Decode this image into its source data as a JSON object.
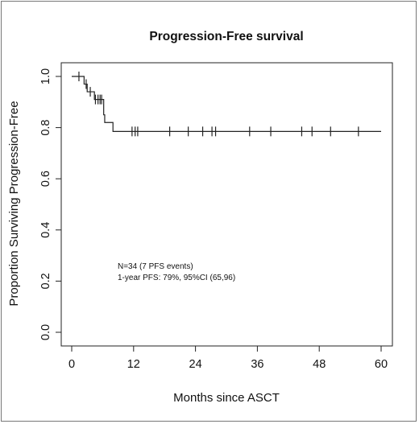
{
  "chart_data": {
    "type": "line",
    "subtype": "kaplan-meier",
    "title": "Progression-Free survival",
    "xlabel": "Months since ASCT",
    "ylabel": "Proportion Surviving Progression-Free",
    "xlim": [
      0,
      60
    ],
    "ylim": [
      0,
      1
    ],
    "xticks": [
      0,
      12,
      24,
      36,
      48,
      60
    ],
    "yticks": [
      "0.0",
      "0.2",
      "0.4",
      "0.6",
      "0.8",
      "1.0"
    ],
    "grid": false,
    "series": [
      {
        "steps": [
          {
            "x": 0,
            "y": 1.0
          },
          {
            "x": 2.4,
            "y": 0.97
          },
          {
            "x": 3.0,
            "y": 0.94
          },
          {
            "x": 4.4,
            "y": 0.91
          },
          {
            "x": 6.2,
            "y": 0.85
          },
          {
            "x": 6.4,
            "y": 0.82
          },
          {
            "x": 8.0,
            "y": 0.785
          },
          {
            "x": 60,
            "y": 0.785
          }
        ],
        "censored": [
          {
            "x": 1.4,
            "y": 1.0
          },
          {
            "x": 2.8,
            "y": 0.97
          },
          {
            "x": 3.6,
            "y": 0.94
          },
          {
            "x": 4.6,
            "y": 0.91
          },
          {
            "x": 5.1,
            "y": 0.91
          },
          {
            "x": 5.5,
            "y": 0.91
          },
          {
            "x": 5.8,
            "y": 0.91
          },
          {
            "x": 11.7,
            "y": 0.785
          },
          {
            "x": 12.3,
            "y": 0.785
          },
          {
            "x": 12.8,
            "y": 0.785
          },
          {
            "x": 19.0,
            "y": 0.785
          },
          {
            "x": 22.6,
            "y": 0.785
          },
          {
            "x": 25.4,
            "y": 0.785
          },
          {
            "x": 27.2,
            "y": 0.785
          },
          {
            "x": 27.9,
            "y": 0.785
          },
          {
            "x": 34.5,
            "y": 0.785
          },
          {
            "x": 38.6,
            "y": 0.785
          },
          {
            "x": 44.6,
            "y": 0.785
          },
          {
            "x": 46.6,
            "y": 0.785
          },
          {
            "x": 50.2,
            "y": 0.785
          },
          {
            "x": 55.6,
            "y": 0.785
          }
        ]
      }
    ],
    "annotations": [
      "N=34 (7 PFS events)",
      "1-year PFS: 79%, 95%CI (65,96)"
    ],
    "colors": {
      "line": "#222222",
      "axis": "#222222",
      "border": "#777777"
    }
  }
}
